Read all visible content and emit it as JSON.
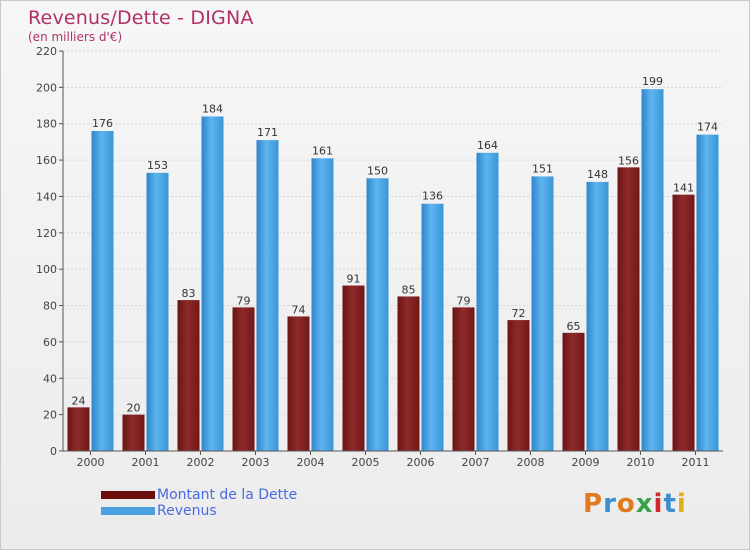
{
  "chart_data": {
    "type": "bar",
    "title": "Revenus/Dette - DIGNA",
    "subtitle": "(en milliers d'€)",
    "categories": [
      "2000",
      "2001",
      "2002",
      "2003",
      "2004",
      "2005",
      "2006",
      "2007",
      "2008",
      "2009",
      "2010",
      "2011"
    ],
    "series": [
      {
        "name": "Montant de la Dette",
        "values": [
          24,
          20,
          83,
          79,
          74,
          91,
          85,
          79,
          72,
          65,
          156,
          141
        ],
        "color": "#7a1c1c"
      },
      {
        "name": "Revenus",
        "values": [
          176,
          153,
          184,
          171,
          161,
          150,
          136,
          164,
          151,
          148,
          199,
          174
        ],
        "color": "#4aa0e0"
      }
    ],
    "ylim": [
      0,
      220
    ],
    "yticks": [
      0,
      20,
      40,
      60,
      80,
      100,
      120,
      140,
      160,
      180,
      200,
      220
    ],
    "grid": true,
    "legend_position": "bottom-left"
  },
  "logo": {
    "text": "Proxiti",
    "colors": [
      "#e07a1c",
      "#3a8fd0",
      "#e07a1c",
      "#3aa04a",
      "#d02a2a",
      "#3a8fd0",
      "#e0b01c"
    ]
  }
}
